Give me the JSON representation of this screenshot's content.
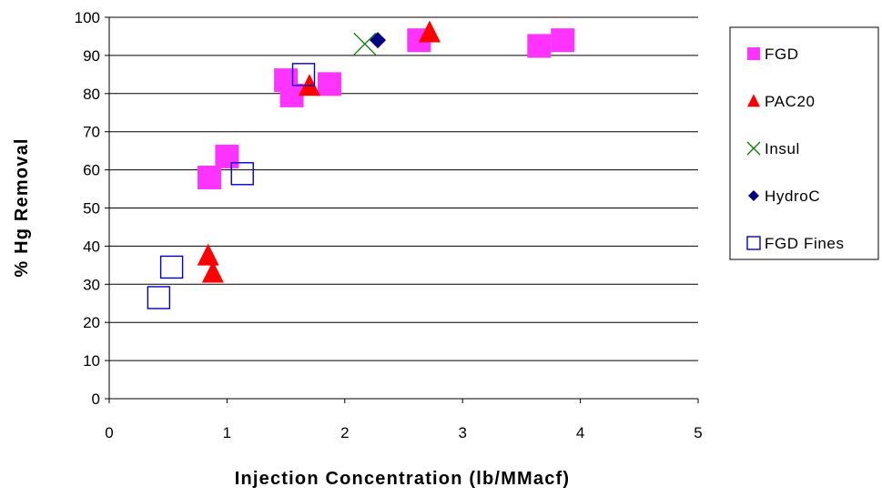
{
  "chart_data": {
    "type": "scatter",
    "xlabel": "Injection Concentration (lb/MMacf)",
    "ylabel": "% Hg Removal",
    "xlim": [
      0,
      5
    ],
    "ylim": [
      0,
      100
    ],
    "xticks": [
      "0",
      "1",
      "2",
      "3",
      "4",
      "5"
    ],
    "yticks": [
      "0",
      "10",
      "20",
      "30",
      "40",
      "50",
      "60",
      "70",
      "80",
      "90",
      "100"
    ],
    "grid": "horizontal",
    "legend_position": "right",
    "series": [
      {
        "name": "FGD",
        "marker": "filled-square",
        "color": "#FF33FF",
        "points": [
          [
            0.85,
            58
          ],
          [
            1.0,
            63.5
          ],
          [
            1.5,
            83.5
          ],
          [
            1.55,
            79.5
          ],
          [
            1.87,
            82.5
          ],
          [
            2.63,
            94
          ],
          [
            3.65,
            92.5
          ],
          [
            3.85,
            94
          ]
        ]
      },
      {
        "name": "PAC20",
        "marker": "filled-triangle",
        "color": "#FF0000",
        "points": [
          [
            0.84,
            37.5
          ],
          [
            0.88,
            33
          ],
          [
            1.7,
            82
          ],
          [
            2.72,
            96
          ]
        ]
      },
      {
        "name": "Insul",
        "marker": "cross",
        "color": "#008000",
        "points": [
          [
            2.17,
            93
          ]
        ]
      },
      {
        "name": "HydroC",
        "marker": "filled-diamond",
        "color": "#000080",
        "points": [
          [
            2.28,
            94
          ]
        ]
      },
      {
        "name": "FGD Fines",
        "marker": "open-square",
        "color": "#0000CC",
        "points": [
          [
            0.42,
            26.5
          ],
          [
            0.53,
            34.5
          ],
          [
            1.13,
            59
          ],
          [
            1.65,
            85
          ]
        ]
      }
    ]
  }
}
